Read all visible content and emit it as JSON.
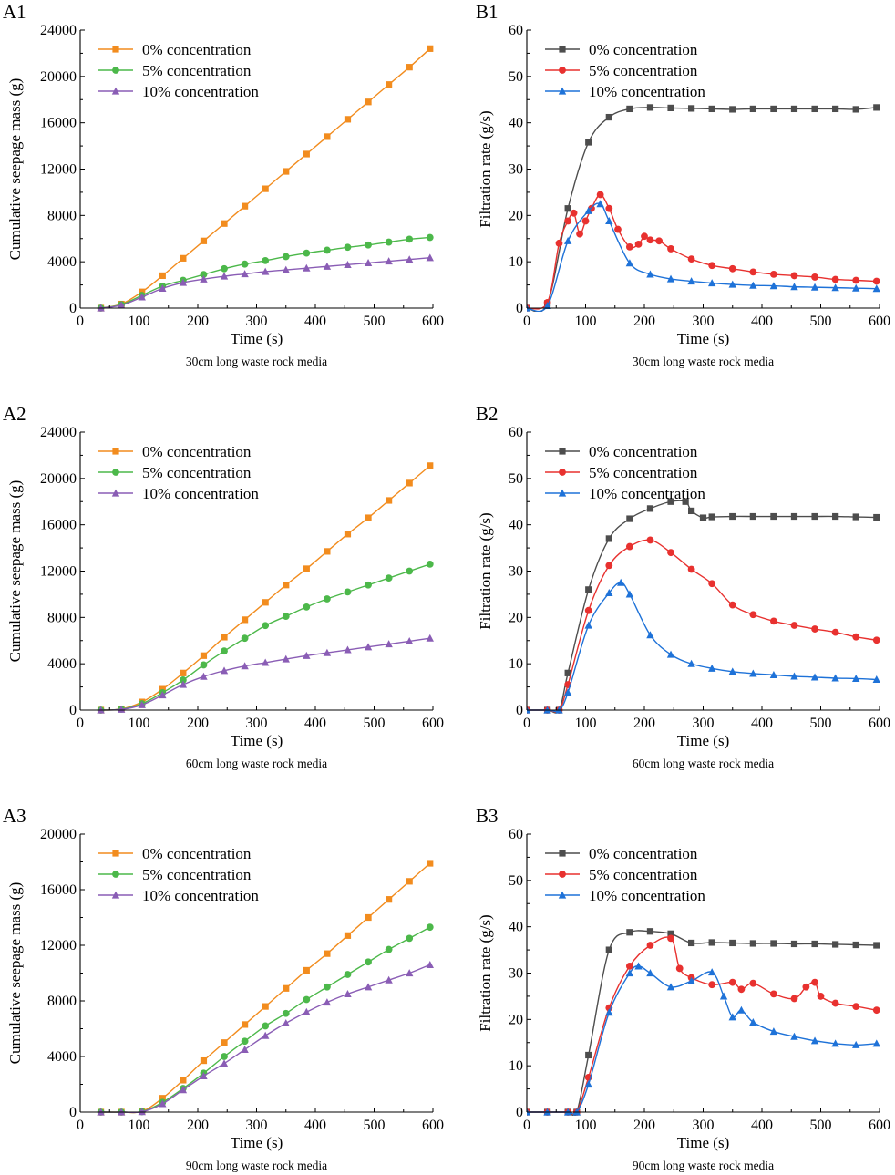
{
  "colors": {
    "A": [
      "#F28C1E",
      "#4CB84A",
      "#8A5DB5"
    ],
    "B": [
      "#4D4D4D",
      "#E8312F",
      "#1E72D8"
    ]
  },
  "chart_data": [
    {
      "id": "A1",
      "type": "line",
      "panel_label": "A1",
      "caption": "30cm long waste rock media",
      "xlabel": "Time (s)",
      "ylabel": "Cumulative seepage mass (g)",
      "xlim": [
        0,
        600
      ],
      "ylim": [
        0,
        24000
      ],
      "xticks": [
        0,
        100,
        200,
        300,
        400,
        500,
        600
      ],
      "yticks": [
        0,
        4000,
        8000,
        12000,
        16000,
        20000,
        24000
      ],
      "markers": [
        "square",
        "circle",
        "triangle"
      ],
      "series": [
        {
          "name": "0% concentration",
          "x": [
            35,
            70,
            105,
            140,
            175,
            210,
            245,
            280,
            315,
            350,
            385,
            420,
            455,
            490,
            525,
            560,
            595
          ],
          "y": [
            0,
            350,
            1400,
            2800,
            4300,
            5800,
            7300,
            8800,
            10300,
            11800,
            13300,
            14800,
            16300,
            17800,
            19300,
            20800,
            22400
          ]
        },
        {
          "name": "5% concentration",
          "x": [
            35,
            70,
            105,
            140,
            175,
            210,
            245,
            280,
            315,
            350,
            385,
            420,
            455,
            490,
            525,
            560,
            595
          ],
          "y": [
            0,
            300,
            1100,
            1900,
            2400,
            2900,
            3400,
            3800,
            4100,
            4450,
            4750,
            5000,
            5250,
            5450,
            5700,
            5950,
            6100
          ]
        },
        {
          "name": "10% concentration",
          "x": [
            35,
            70,
            105,
            140,
            175,
            210,
            245,
            280,
            315,
            350,
            385,
            420,
            455,
            490,
            525,
            560,
            595
          ],
          "y": [
            0,
            250,
            950,
            1700,
            2200,
            2500,
            2750,
            2950,
            3150,
            3300,
            3450,
            3600,
            3750,
            3900,
            4050,
            4200,
            4350
          ]
        }
      ]
    },
    {
      "id": "B1",
      "type": "line",
      "panel_label": "B1",
      "caption": "30cm long waste rock media",
      "xlabel": "Time (s)",
      "ylabel": "Filtration rate (g/s)",
      "xlim": [
        0,
        600
      ],
      "ylim": [
        0,
        60
      ],
      "xticks": [
        0,
        100,
        200,
        300,
        400,
        500,
        600
      ],
      "yticks": [
        0,
        10,
        20,
        30,
        40,
        50,
        60
      ],
      "markers": [
        "square",
        "circle",
        "triangle"
      ],
      "series": [
        {
          "name": "0% concentration",
          "x": [
            0,
            35,
            70,
            105,
            140,
            175,
            210,
            245,
            280,
            315,
            350,
            385,
            420,
            455,
            490,
            525,
            560,
            595
          ],
          "y": [
            0,
            1,
            21.5,
            35.8,
            41.2,
            43,
            43.3,
            43.2,
            43.1,
            43,
            42.9,
            43,
            43,
            43,
            43,
            43,
            42.9,
            43.3
          ]
        },
        {
          "name": "5% concentration",
          "x": [
            0,
            35,
            55,
            70,
            80,
            90,
            100,
            110,
            125,
            140,
            155,
            175,
            190,
            200,
            210,
            225,
            245,
            280,
            315,
            350,
            385,
            420,
            455,
            490,
            525,
            560,
            595
          ],
          "y": [
            0,
            1.2,
            14,
            18.8,
            20.5,
            16,
            18.8,
            21.5,
            24.5,
            21.5,
            17,
            13.2,
            13.8,
            15.5,
            14.7,
            14.5,
            12.8,
            10.6,
            9.2,
            8.5,
            7.8,
            7.3,
            7,
            6.7,
            6.2,
            6,
            5.8
          ]
        },
        {
          "name": "10% concentration",
          "x": [
            0,
            35,
            70,
            105,
            125,
            140,
            175,
            210,
            245,
            280,
            315,
            350,
            385,
            420,
            455,
            490,
            525,
            560,
            595
          ],
          "y": [
            0,
            0.5,
            14.5,
            21,
            22.5,
            18.8,
            9.7,
            7.3,
            6.3,
            5.8,
            5.4,
            5.1,
            4.9,
            4.8,
            4.6,
            4.5,
            4.4,
            4.3,
            4.2
          ]
        }
      ]
    },
    {
      "id": "A2",
      "type": "line",
      "panel_label": "A2",
      "caption": "60cm long waste rock media",
      "xlabel": "Time (s)",
      "ylabel": "Cumulative seepage mass (g)",
      "xlim": [
        0,
        600
      ],
      "ylim": [
        0,
        24000
      ],
      "xticks": [
        0,
        100,
        200,
        300,
        400,
        500,
        600
      ],
      "yticks": [
        0,
        4000,
        8000,
        12000,
        16000,
        20000,
        24000
      ],
      "markers": [
        "square",
        "circle",
        "triangle"
      ],
      "series": [
        {
          "name": "0% concentration",
          "x": [
            35,
            70,
            105,
            140,
            175,
            210,
            245,
            280,
            315,
            350,
            385,
            420,
            455,
            490,
            525,
            560,
            595
          ],
          "y": [
            0,
            100,
            700,
            1800,
            3200,
            4700,
            6300,
            7800,
            9300,
            10800,
            12200,
            13700,
            15200,
            16600,
            18100,
            19600,
            21100
          ]
        },
        {
          "name": "5% concentration",
          "x": [
            35,
            70,
            105,
            140,
            175,
            210,
            245,
            280,
            315,
            350,
            385,
            420,
            455,
            490,
            525,
            560,
            595
          ],
          "y": [
            0,
            80,
            550,
            1500,
            2600,
            3900,
            5100,
            6200,
            7300,
            8100,
            8900,
            9600,
            10200,
            10800,
            11400,
            12000,
            12600
          ]
        },
        {
          "name": "10% concentration",
          "x": [
            35,
            70,
            105,
            140,
            175,
            210,
            245,
            280,
            315,
            350,
            385,
            420,
            455,
            490,
            525,
            560,
            595
          ],
          "y": [
            0,
            60,
            450,
            1300,
            2200,
            2900,
            3400,
            3800,
            4100,
            4400,
            4700,
            4950,
            5200,
            5450,
            5700,
            5950,
            6200
          ]
        }
      ]
    },
    {
      "id": "B2",
      "type": "line",
      "panel_label": "B2",
      "caption": "60cm long waste rock media",
      "xlabel": "Time (s)",
      "ylabel": "Filtration rate (g/s)",
      "xlim": [
        0,
        600
      ],
      "ylim": [
        0,
        60
      ],
      "xticks": [
        0,
        100,
        200,
        300,
        400,
        500,
        600
      ],
      "yticks": [
        0,
        10,
        20,
        30,
        40,
        50,
        60
      ],
      "markers": [
        "square",
        "circle",
        "triangle"
      ],
      "series": [
        {
          "name": "0% concentration",
          "x": [
            0,
            35,
            55,
            70,
            105,
            140,
            175,
            210,
            245,
            270,
            280,
            300,
            315,
            350,
            385,
            420,
            455,
            490,
            525,
            560,
            595
          ],
          "y": [
            0,
            0,
            0,
            8,
            26,
            37,
            41.3,
            43.5,
            45,
            45,
            43,
            41.5,
            41.7,
            41.8,
            41.8,
            41.8,
            41.8,
            41.8,
            41.8,
            41.7,
            41.6
          ]
        },
        {
          "name": "5% concentration",
          "x": [
            0,
            35,
            55,
            70,
            105,
            140,
            175,
            210,
            245,
            280,
            315,
            350,
            385,
            420,
            455,
            490,
            525,
            560,
            595
          ],
          "y": [
            0,
            0,
            0,
            5.5,
            21.5,
            31.2,
            35.3,
            36.7,
            34,
            30.4,
            27.3,
            22.7,
            20.6,
            19.2,
            18.3,
            17.5,
            16.8,
            15.8,
            15.1
          ]
        },
        {
          "name": "10% concentration",
          "x": [
            0,
            35,
            55,
            70,
            105,
            140,
            160,
            175,
            210,
            245,
            280,
            315,
            350,
            385,
            420,
            455,
            490,
            525,
            560,
            595
          ],
          "y": [
            0,
            0,
            0,
            3.8,
            18.3,
            25.3,
            27.5,
            25,
            16.2,
            12,
            10,
            9,
            8.3,
            7.9,
            7.6,
            7.3,
            7.1,
            6.9,
            6.8,
            6.6
          ]
        }
      ]
    },
    {
      "id": "A3",
      "type": "line",
      "panel_label": "A3",
      "caption": "90cm long waste rock media",
      "xlabel": "Time (s)",
      "ylabel": "Cumulative seepage mass (g)",
      "xlim": [
        0,
        600
      ],
      "ylim": [
        0,
        20000
      ],
      "xticks": [
        0,
        100,
        200,
        300,
        400,
        500,
        600
      ],
      "yticks": [
        0,
        4000,
        8000,
        12000,
        16000,
        20000
      ],
      "markers": [
        "square",
        "circle",
        "triangle"
      ],
      "series": [
        {
          "name": "0% concentration",
          "x": [
            35,
            70,
            105,
            140,
            175,
            210,
            245,
            280,
            315,
            350,
            385,
            420,
            455,
            490,
            525,
            560,
            595
          ],
          "y": [
            0,
            0,
            50,
            1000,
            2300,
            3700,
            5000,
            6300,
            7600,
            8900,
            10200,
            11400,
            12700,
            14000,
            15300,
            16600,
            17900
          ]
        },
        {
          "name": "5% concentration",
          "x": [
            35,
            70,
            105,
            140,
            175,
            210,
            245,
            280,
            315,
            350,
            385,
            420,
            455,
            490,
            525,
            560,
            595
          ],
          "y": [
            0,
            0,
            30,
            700,
            1700,
            2800,
            4000,
            5100,
            6200,
            7100,
            8100,
            9000,
            9900,
            10800,
            11700,
            12500,
            13300
          ]
        },
        {
          "name": "10% concentration",
          "x": [
            35,
            70,
            105,
            140,
            175,
            210,
            245,
            280,
            315,
            350,
            385,
            420,
            455,
            490,
            525,
            560,
            595
          ],
          "y": [
            0,
            0,
            20,
            600,
            1600,
            2600,
            3500,
            4500,
            5500,
            6400,
            7200,
            7900,
            8500,
            9000,
            9500,
            10000,
            10600
          ]
        }
      ]
    },
    {
      "id": "B3",
      "type": "line",
      "panel_label": "B3",
      "caption": "90cm long waste rock media",
      "xlabel": "Time (s)",
      "ylabel": "Filtration rate (g/s)",
      "xlim": [
        0,
        600
      ],
      "ylim": [
        0,
        60
      ],
      "xticks": [
        0,
        100,
        200,
        300,
        400,
        500,
        600
      ],
      "yticks": [
        0,
        10,
        20,
        30,
        40,
        50,
        60
      ],
      "markers": [
        "square",
        "circle",
        "triangle"
      ],
      "series": [
        {
          "name": "0% concentration",
          "x": [
            0,
            35,
            70,
            85,
            105,
            140,
            175,
            210,
            245,
            280,
            315,
            350,
            385,
            420,
            455,
            490,
            525,
            560,
            595
          ],
          "y": [
            0,
            0,
            0,
            0,
            12.3,
            35,
            38.8,
            39,
            38.5,
            36.5,
            36.6,
            36.5,
            36.4,
            36.4,
            36.3,
            36.3,
            36.2,
            36.1,
            36
          ]
        },
        {
          "name": "5% concentration",
          "x": [
            0,
            35,
            70,
            85,
            105,
            140,
            175,
            210,
            245,
            260,
            280,
            315,
            350,
            365,
            385,
            420,
            455,
            475,
            490,
            500,
            525,
            560,
            595
          ],
          "y": [
            0,
            0,
            0,
            0,
            7.5,
            22.5,
            31.5,
            36,
            37.5,
            31,
            29,
            27.5,
            28,
            26.5,
            27.8,
            25.5,
            24.5,
            27,
            28,
            25,
            23.5,
            22.8,
            22
          ]
        },
        {
          "name": "10% concentration",
          "x": [
            0,
            35,
            70,
            85,
            105,
            140,
            175,
            190,
            210,
            245,
            280,
            315,
            335,
            350,
            365,
            385,
            420,
            455,
            490,
            525,
            560,
            595
          ],
          "y": [
            0,
            0,
            0,
            0,
            6,
            21.5,
            30,
            31.5,
            30,
            27,
            28.3,
            30.2,
            25,
            20.5,
            22,
            19.4,
            17.4,
            16.3,
            15.4,
            14.8,
            14.5,
            14.8
          ]
        }
      ]
    }
  ]
}
